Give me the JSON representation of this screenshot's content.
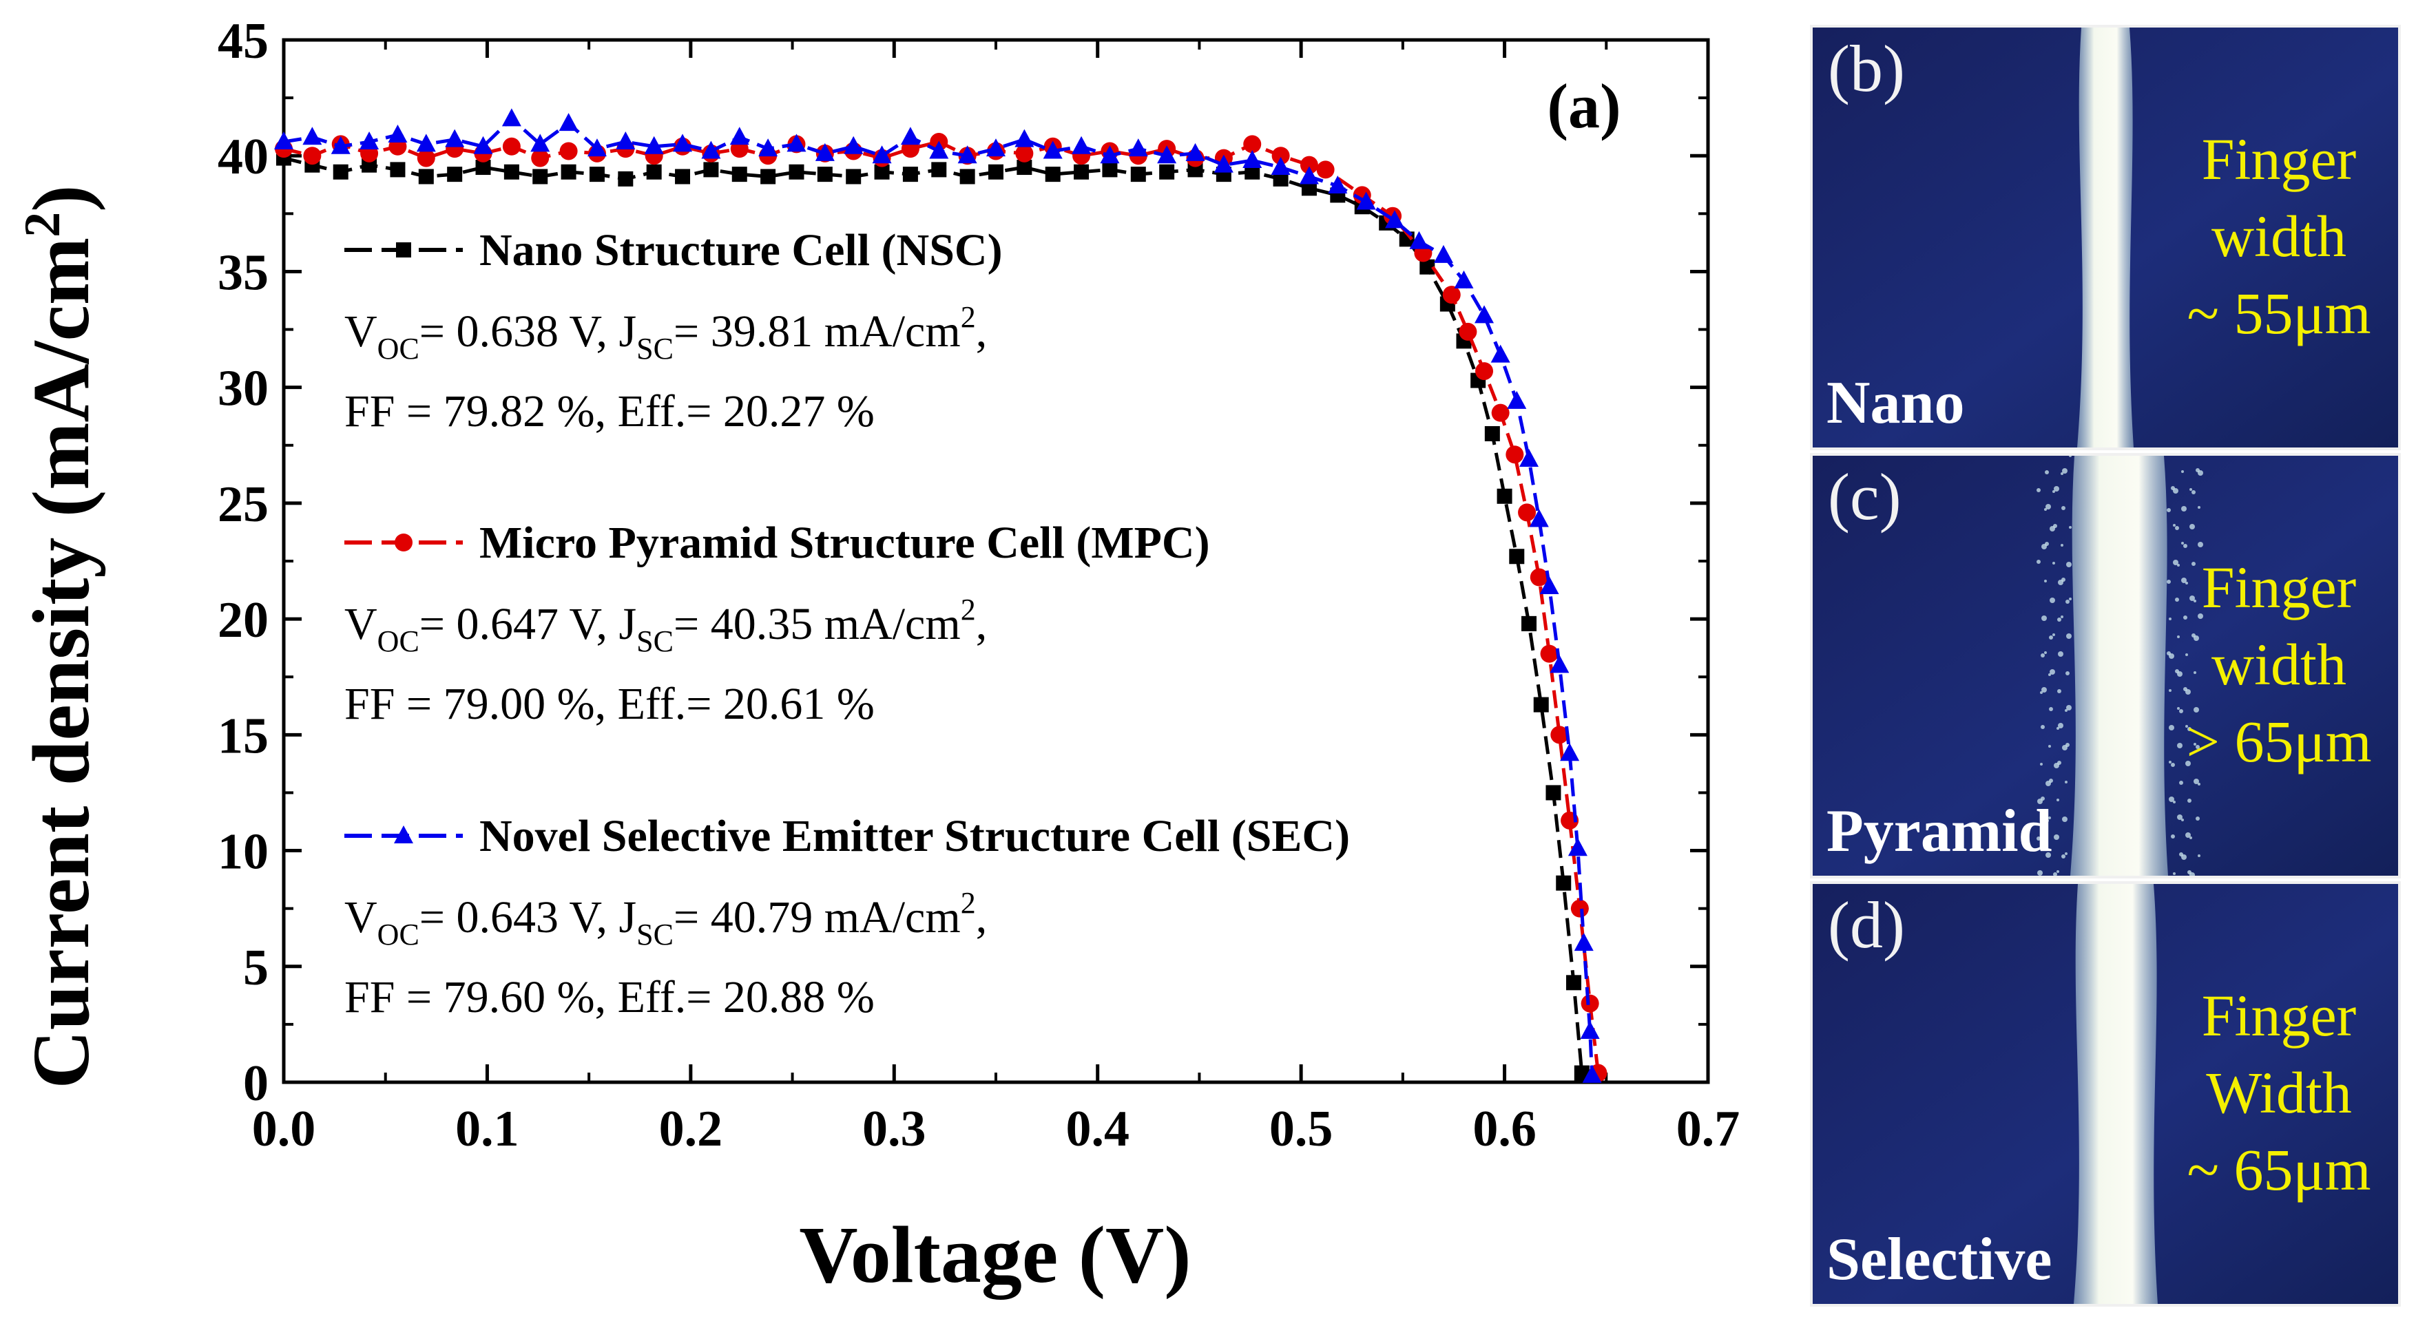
{
  "chart_data": {
    "type": "line",
    "panel_label": "(a)",
    "xlabel": "Voltage (V)",
    "ylabel": "Current density (mA/cm",
    "ylabel_sup": "2",
    "ylabel_close": ")",
    "xlim": [
      0.0,
      0.7
    ],
    "ylim": [
      0,
      45
    ],
    "x_ticks": [
      "0.0",
      "0.1",
      "0.2",
      "0.3",
      "0.4",
      "0.5",
      "0.6",
      "0.7"
    ],
    "y_ticks": [
      "0",
      "5",
      "10",
      "15",
      "20",
      "25",
      "30",
      "35",
      "40",
      "45"
    ],
    "legend_position": "center-left",
    "series": [
      {
        "name": "Nano Structure Cell (NSC)",
        "color": "#000000",
        "marker": "square",
        "line_style": "dash",
        "params": [
          {
            "pre": "V",
            "sub": "OC",
            "text": "= 0.638 V,  J",
            "sub2": "SC",
            "text2": "= 39.81 mA/cm",
            "sup": "2",
            "tail": ","
          },
          {
            "pre": "FF = 79.82 %,  Eff.= 20.27 %"
          }
        ],
        "points": [
          [
            0.0,
            39.9
          ],
          [
            0.014,
            39.6
          ],
          [
            0.028,
            39.3
          ],
          [
            0.042,
            39.6
          ],
          [
            0.056,
            39.4
          ],
          [
            0.07,
            39.1
          ],
          [
            0.084,
            39.2
          ],
          [
            0.098,
            39.5
          ],
          [
            0.112,
            39.3
          ],
          [
            0.126,
            39.1
          ],
          [
            0.14,
            39.3
          ],
          [
            0.154,
            39.2
          ],
          [
            0.168,
            39.0
          ],
          [
            0.182,
            39.3
          ],
          [
            0.196,
            39.1
          ],
          [
            0.21,
            39.4
          ],
          [
            0.224,
            39.2
          ],
          [
            0.238,
            39.1
          ],
          [
            0.252,
            39.3
          ],
          [
            0.266,
            39.2
          ],
          [
            0.28,
            39.1
          ],
          [
            0.294,
            39.3
          ],
          [
            0.308,
            39.2
          ],
          [
            0.322,
            39.4
          ],
          [
            0.336,
            39.1
          ],
          [
            0.35,
            39.3
          ],
          [
            0.364,
            39.5
          ],
          [
            0.378,
            39.2
          ],
          [
            0.392,
            39.3
          ],
          [
            0.406,
            39.4
          ],
          [
            0.42,
            39.2
          ],
          [
            0.434,
            39.3
          ],
          [
            0.448,
            39.4
          ],
          [
            0.462,
            39.2
          ],
          [
            0.476,
            39.3
          ],
          [
            0.49,
            39.0
          ],
          [
            0.504,
            38.6
          ],
          [
            0.518,
            38.3
          ],
          [
            0.53,
            37.8
          ],
          [
            0.542,
            37.1
          ],
          [
            0.552,
            36.4
          ],
          [
            0.562,
            35.2
          ],
          [
            0.572,
            33.6
          ],
          [
            0.58,
            32.0
          ],
          [
            0.587,
            30.3
          ],
          [
            0.594,
            28.0
          ],
          [
            0.6,
            25.3
          ],
          [
            0.606,
            22.7
          ],
          [
            0.612,
            19.8
          ],
          [
            0.618,
            16.3
          ],
          [
            0.624,
            12.5
          ],
          [
            0.629,
            8.6
          ],
          [
            0.634,
            4.3
          ],
          [
            0.638,
            0.4
          ]
        ]
      },
      {
        "name": "Micro Pyramid Structure Cell (MPC)",
        "color": "#e00000",
        "marker": "circle",
        "line_style": "dash",
        "params": [
          {
            "pre": "V",
            "sub": "OC",
            "text": "= 0.647 V,  J",
            "sub2": "SC",
            "text2": "= 40.35 mA/cm",
            "sup": "2",
            "tail": ","
          },
          {
            "pre": "FF = 79.00 %,  Eff.= 20.61 %"
          }
        ],
        "points": [
          [
            0.0,
            40.3
          ],
          [
            0.014,
            40.0
          ],
          [
            0.028,
            40.5
          ],
          [
            0.042,
            40.1
          ],
          [
            0.056,
            40.4
          ],
          [
            0.07,
            39.9
          ],
          [
            0.084,
            40.3
          ],
          [
            0.098,
            40.1
          ],
          [
            0.112,
            40.4
          ],
          [
            0.126,
            39.9
          ],
          [
            0.14,
            40.2
          ],
          [
            0.154,
            40.1
          ],
          [
            0.168,
            40.3
          ],
          [
            0.182,
            40.0
          ],
          [
            0.196,
            40.4
          ],
          [
            0.21,
            40.1
          ],
          [
            0.224,
            40.3
          ],
          [
            0.238,
            40.0
          ],
          [
            0.252,
            40.5
          ],
          [
            0.266,
            40.1
          ],
          [
            0.28,
            40.2
          ],
          [
            0.294,
            39.9
          ],
          [
            0.308,
            40.3
          ],
          [
            0.322,
            40.6
          ],
          [
            0.336,
            40.0
          ],
          [
            0.35,
            40.2
          ],
          [
            0.364,
            40.1
          ],
          [
            0.378,
            40.4
          ],
          [
            0.392,
            40.0
          ],
          [
            0.406,
            40.2
          ],
          [
            0.42,
            40.0
          ],
          [
            0.434,
            40.3
          ],
          [
            0.448,
            39.9
          ],
          [
            0.462,
            39.9
          ],
          [
            0.476,
            40.5
          ],
          [
            0.49,
            40.0
          ],
          [
            0.504,
            39.6
          ],
          [
            0.512,
            39.4
          ],
          [
            0.53,
            38.3
          ],
          [
            0.545,
            37.4
          ],
          [
            0.56,
            35.8
          ],
          [
            0.574,
            34.0
          ],
          [
            0.582,
            32.4
          ],
          [
            0.59,
            30.7
          ],
          [
            0.598,
            28.9
          ],
          [
            0.605,
            27.1
          ],
          [
            0.611,
            24.6
          ],
          [
            0.617,
            21.8
          ],
          [
            0.622,
            18.5
          ],
          [
            0.627,
            15.0
          ],
          [
            0.632,
            11.3
          ],
          [
            0.637,
            7.5
          ],
          [
            0.642,
            3.4
          ],
          [
            0.646,
            0.4
          ]
        ]
      },
      {
        "name": "Novel Selective Emitter Structure Cell (SEC)",
        "color": "#0000ee",
        "marker": "triangle",
        "line_style": "dash",
        "params": [
          {
            "pre": "V",
            "sub": "OC",
            "text": "= 0.643 V,  J",
            "sub2": "SC",
            "text2": "= 40.79 mA/cm",
            "sup": "2",
            "tail": ","
          },
          {
            "pre": "FF = 79.60 %,  Eff.= 20.88 %"
          }
        ],
        "points": [
          [
            0.0,
            40.6
          ],
          [
            0.014,
            40.8
          ],
          [
            0.028,
            40.4
          ],
          [
            0.042,
            40.6
          ],
          [
            0.056,
            40.9
          ],
          [
            0.07,
            40.5
          ],
          [
            0.084,
            40.7
          ],
          [
            0.098,
            40.4
          ],
          [
            0.112,
            41.6
          ],
          [
            0.126,
            40.5
          ],
          [
            0.14,
            41.4
          ],
          [
            0.154,
            40.3
          ],
          [
            0.168,
            40.6
          ],
          [
            0.182,
            40.4
          ],
          [
            0.196,
            40.5
          ],
          [
            0.21,
            40.2
          ],
          [
            0.224,
            40.8
          ],
          [
            0.238,
            40.3
          ],
          [
            0.252,
            40.5
          ],
          [
            0.266,
            40.1
          ],
          [
            0.28,
            40.4
          ],
          [
            0.294,
            40.0
          ],
          [
            0.308,
            40.8
          ],
          [
            0.322,
            40.2
          ],
          [
            0.336,
            40.0
          ],
          [
            0.35,
            40.3
          ],
          [
            0.364,
            40.7
          ],
          [
            0.378,
            40.2
          ],
          [
            0.392,
            40.4
          ],
          [
            0.406,
            40.0
          ],
          [
            0.42,
            40.3
          ],
          [
            0.434,
            40.0
          ],
          [
            0.448,
            40.1
          ],
          [
            0.462,
            39.6
          ],
          [
            0.476,
            39.8
          ],
          [
            0.49,
            39.5
          ],
          [
            0.504,
            39.1
          ],
          [
            0.518,
            38.7
          ],
          [
            0.532,
            38.0
          ],
          [
            0.546,
            37.2
          ],
          [
            0.558,
            36.3
          ],
          [
            0.57,
            35.7
          ],
          [
            0.58,
            34.6
          ],
          [
            0.59,
            33.1
          ],
          [
            0.598,
            31.4
          ],
          [
            0.606,
            29.4
          ],
          [
            0.612,
            26.9
          ],
          [
            0.617,
            24.3
          ],
          [
            0.622,
            21.4
          ],
          [
            0.627,
            18.0
          ],
          [
            0.632,
            14.2
          ],
          [
            0.636,
            10.1
          ],
          [
            0.639,
            6.0
          ],
          [
            0.642,
            2.2
          ],
          [
            0.643,
            0.3
          ]
        ]
      }
    ]
  },
  "micrographs": [
    {
      "letter": "(b)",
      "label": "Nano",
      "caption": [
        "Finger",
        "width",
        "~ 55μm"
      ]
    },
    {
      "letter": "(c)",
      "label": "Pyramid",
      "caption": [
        "Finger",
        "width",
        "> 65μm"
      ]
    },
    {
      "letter": "(d)",
      "label": "Selective",
      "caption": [
        "Finger",
        "Width",
        "~ 65μm"
      ]
    }
  ]
}
